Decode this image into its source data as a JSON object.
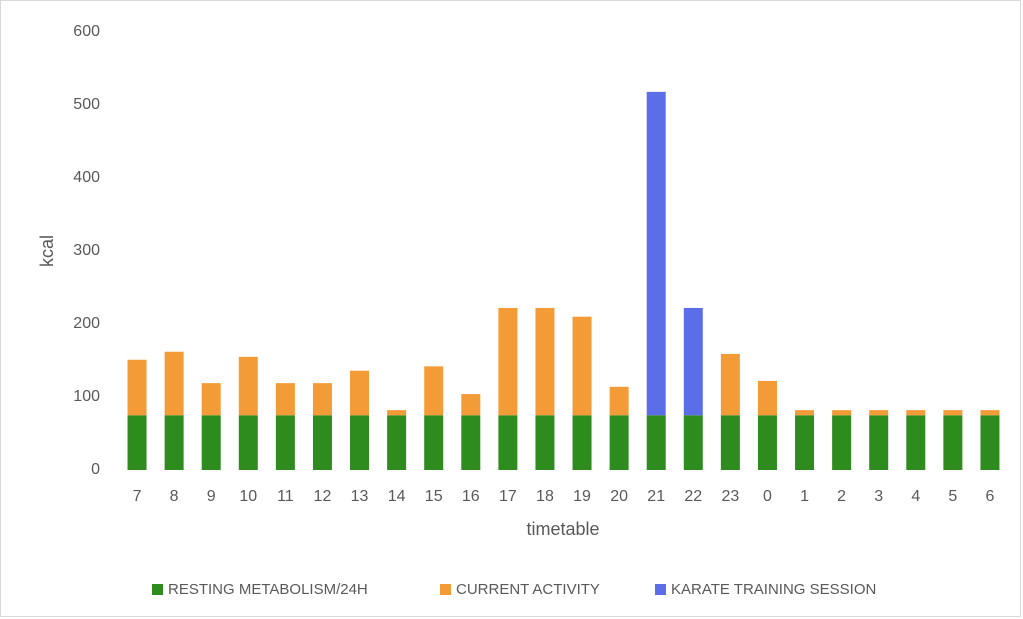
{
  "chart_data": {
    "type": "stacked_bar",
    "categories": [
      "7",
      "8",
      "9",
      "10",
      "11",
      "12",
      "13",
      "14",
      "15",
      "16",
      "17",
      "18",
      "19",
      "20",
      "21",
      "22",
      "23",
      "0",
      "1",
      "2",
      "3",
      "4",
      "5",
      "6"
    ],
    "series": [
      {
        "name": "RESTING METABOLISM/24H",
        "color": "#2e8b1e",
        "values": [
          75,
          75,
          75,
          75,
          75,
          75,
          75,
          75,
          75,
          75,
          75,
          75,
          75,
          75,
          75,
          75,
          75,
          75,
          75,
          75,
          75,
          75,
          75,
          75
        ]
      },
      {
        "name": "CURRENT ACTIVITY",
        "color": "#f39b37",
        "values": [
          76,
          87,
          44,
          80,
          44,
          44,
          61,
          7,
          67,
          29,
          147,
          147,
          135,
          39,
          0,
          0,
          84,
          47,
          7,
          7,
          7,
          7,
          7,
          7
        ]
      },
      {
        "name": "KARATE TRAINING SESSION",
        "color": "#5b6ee8",
        "values": [
          0,
          0,
          0,
          0,
          0,
          0,
          0,
          0,
          0,
          0,
          0,
          0,
          0,
          0,
          443,
          147,
          0,
          0,
          0,
          0,
          0,
          0,
          0,
          0
        ]
      }
    ],
    "x_label": "timetable",
    "y_label": "kcal",
    "ylim": [
      0,
      600
    ],
    "yticks": [
      0,
      100,
      200,
      300,
      400,
      500,
      600
    ],
    "grid": false,
    "legend": "bottom"
  }
}
